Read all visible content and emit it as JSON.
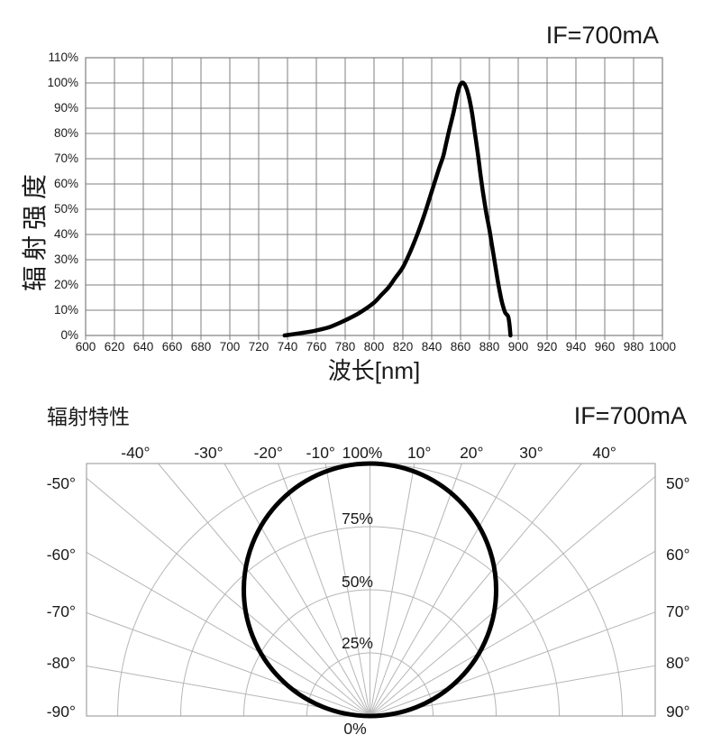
{
  "colors": {
    "background": "#ffffff",
    "curve": "#000000",
    "grid_spectral": "#7f7f7f",
    "grid_polar": "#b6b6b6",
    "polar_border": "#a3a3a3",
    "text": "#1a1a1a"
  },
  "chart_data": [
    {
      "type": "line",
      "name": "spectral-distribution",
      "condition": "IF=700mA",
      "xlabel": "波长[nm]",
      "ylabel": "辐射强度",
      "x_min": 600,
      "x_max": 1000,
      "x_tick_step": 20,
      "y_min_pct": 0,
      "y_max_pct": 110,
      "y_tick_step_pct": 10,
      "x_tick_labels": [
        "600",
        "620",
        "640",
        "660",
        "680",
        "700",
        "720",
        "740",
        "760",
        "780",
        "800",
        "820",
        "840",
        "860",
        "880",
        "900",
        "920",
        "940",
        "960",
        "980",
        "1000"
      ],
      "y_tick_labels": [
        "0%",
        "10%",
        "20%",
        "30%",
        "40%",
        "50%",
        "60%",
        "70%",
        "80%",
        "90%",
        "100%",
        "110%"
      ],
      "peak_wavelength_nm": 860,
      "points_nm_pct": [
        [
          738,
          0
        ],
        [
          750,
          1
        ],
        [
          760,
          2
        ],
        [
          770,
          3.5
        ],
        [
          780,
          6
        ],
        [
          790,
          9
        ],
        [
          800,
          13
        ],
        [
          805,
          16
        ],
        [
          810,
          19
        ],
        [
          815,
          23
        ],
        [
          820,
          27
        ],
        [
          825,
          33
        ],
        [
          830,
          40
        ],
        [
          835,
          48
        ],
        [
          840,
          57
        ],
        [
          845,
          66
        ],
        [
          848,
          71
        ],
        [
          850,
          76
        ],
        [
          852,
          81
        ],
        [
          855,
          88
        ],
        [
          858,
          96
        ],
        [
          860,
          99.5
        ],
        [
          862,
          100
        ],
        [
          864,
          98
        ],
        [
          866,
          94
        ],
        [
          868,
          88
        ],
        [
          870,
          80
        ],
        [
          872,
          72
        ],
        [
          874,
          63
        ],
        [
          876,
          55
        ],
        [
          878,
          48
        ],
        [
          880,
          42
        ],
        [
          882,
          35
        ],
        [
          884,
          28
        ],
        [
          886,
          21
        ],
        [
          888,
          15
        ],
        [
          889.5,
          11.5
        ],
        [
          891,
          9
        ],
        [
          893,
          7.5
        ],
        [
          894,
          4
        ],
        [
          894.6,
          0
        ]
      ]
    },
    {
      "type": "polar",
      "name": "radiation-pattern",
      "title": "辐射特性",
      "condition": "IF=700mA",
      "angle_unit": "deg",
      "angle_grid_step_deg": 10,
      "radial_grid_pct": [
        25,
        50,
        75,
        100
      ],
      "top_angle_labels": [
        {
          "deg": -40,
          "label": "-40°"
        },
        {
          "deg": -30,
          "label": "-30°"
        },
        {
          "deg": -20,
          "label": "-20°"
        },
        {
          "deg": -10,
          "label": "-10°"
        },
        {
          "deg": 10,
          "label": "10°"
        },
        {
          "deg": 20,
          "label": "20°"
        },
        {
          "deg": 30,
          "label": "30°"
        },
        {
          "deg": 40,
          "label": "40°"
        }
      ],
      "left_angle_labels": [
        "-50°",
        "-60°",
        "-70°",
        "-80°",
        "-90°"
      ],
      "right_angle_labels": [
        "50°",
        "60°",
        "70°",
        "80°",
        "90°"
      ],
      "radial_labels": [
        "100%",
        "75%",
        "50%",
        "25%",
        "0%"
      ],
      "points_deg_pct": [
        [
          -90,
          0
        ],
        [
          -80,
          17
        ],
        [
          -70,
          34
        ],
        [
          -60,
          50
        ],
        [
          -50,
          64
        ],
        [
          -40,
          77
        ],
        [
          -30,
          87
        ],
        [
          -20,
          94
        ],
        [
          -10,
          98
        ],
        [
          0,
          100
        ],
        [
          10,
          98
        ],
        [
          20,
          94
        ],
        [
          30,
          87
        ],
        [
          40,
          77
        ],
        [
          50,
          64
        ],
        [
          60,
          50
        ],
        [
          70,
          34
        ],
        [
          80,
          17
        ],
        [
          90,
          0
        ]
      ],
      "pattern": "lambertian cosine (circle through origin, 100% at 0°)"
    }
  ]
}
